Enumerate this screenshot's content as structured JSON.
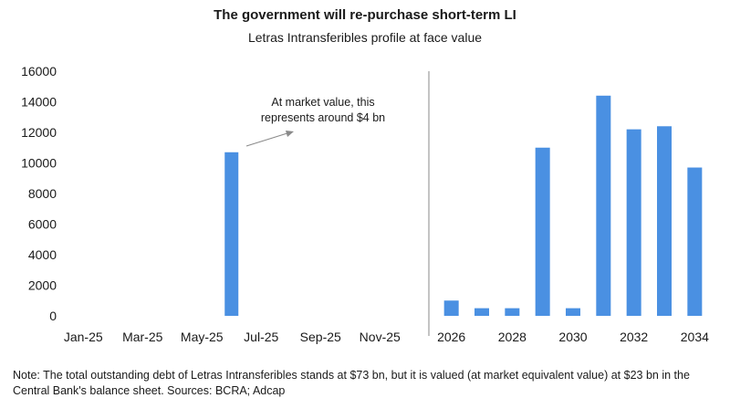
{
  "chart_data": {
    "type": "bar",
    "title": "The government will re-purchase short-term LI",
    "subtitle": "Letras Intransferibles profile at face value",
    "xlabel": "",
    "ylabel": "",
    "ylim": [
      0,
      16000
    ],
    "yticks": [
      0,
      2000,
      4000,
      6000,
      8000,
      10000,
      12000,
      14000,
      16000
    ],
    "bar_color": "#4a90e2",
    "panels": [
      {
        "name": "monthly",
        "categories": [
          "Jan-25",
          "Feb-25",
          "Mar-25",
          "Apr-25",
          "May-25",
          "Jun-25",
          "Jul-25",
          "Aug-25",
          "Sep-25",
          "Oct-25",
          "Nov-25",
          "Dec-25"
        ],
        "tick_labels": [
          "Jan-25",
          "",
          "Mar-25",
          "",
          "May-25",
          "",
          "Jul-25",
          "",
          "Sep-25",
          "",
          "Nov-25",
          ""
        ],
        "values": [
          0,
          0,
          0,
          0,
          0,
          10700,
          0,
          0,
          0,
          0,
          0,
          0
        ]
      },
      {
        "name": "annual",
        "categories": [
          "2026",
          "2027",
          "2028",
          "2029",
          "2030",
          "2031",
          "2032",
          "2033",
          "2034"
        ],
        "tick_labels": [
          "2026",
          "",
          "2028",
          "",
          "2030",
          "",
          "2032",
          "",
          "2034"
        ],
        "values": [
          1000,
          500,
          500,
          11000,
          500,
          14400,
          12200,
          12400,
          9700
        ]
      }
    ],
    "annotation": {
      "lines": [
        "At market value, this",
        "represents around $4 bn"
      ]
    },
    "grid": false,
    "legend": "none"
  },
  "note": "Note: The total outstanding debt of Letras Intransferibles stands at $73 bn, but it is valued (at market equivalent value) at $23 bn in the Central Bank's balance sheet. Sources: BCRA; Adcap"
}
